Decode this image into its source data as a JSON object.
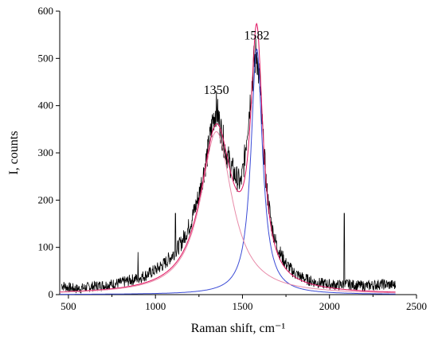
{
  "chart_data": {
    "type": "line",
    "xlabel": "Raman shift, cm⁻¹",
    "ylabel": "I, counts",
    "xlim": [
      450,
      2500
    ],
    "ylim": [
      0,
      600
    ],
    "x_ticks": [
      500,
      1000,
      1500,
      2000,
      2500
    ],
    "y_ticks": [
      0,
      100,
      200,
      300,
      400,
      500,
      600
    ],
    "grid": false,
    "annotations": [
      {
        "text": "1350",
        "x": 1350,
        "y": 425
      },
      {
        "text": "1582",
        "x": 1582,
        "y": 540
      }
    ],
    "series": [
      {
        "style": "measured",
        "color": "#000000",
        "x": [
          460,
          500,
          550,
          600,
          650,
          700,
          750,
          800,
          850,
          900,
          950,
          1000,
          1050,
          1100,
          1150,
          1200,
          1250,
          1300,
          1330,
          1350,
          1370,
          1400,
          1430,
          1460,
          1490,
          1510,
          1530,
          1550,
          1565,
          1582,
          1600,
          1620,
          1640,
          1670,
          1700,
          1750,
          1800,
          1850,
          1900,
          1950,
          2000,
          2050,
          2100,
          2150,
          2200,
          2250,
          2300,
          2380
        ],
        "values": [
          20,
          15,
          12,
          15,
          18,
          20,
          22,
          25,
          30,
          35,
          42,
          52,
          65,
          85,
          110,
          150,
          210,
          300,
          370,
          395,
          360,
          310,
          275,
          250,
          235,
          280,
          360,
          430,
          485,
          515,
          440,
          320,
          220,
          140,
          100,
          65,
          45,
          35,
          28,
          24,
          22,
          20,
          22,
          20,
          18,
          20,
          22,
          20
        ],
        "spikes": [
          {
            "x": 1115,
            "y": 172
          },
          {
            "x": 2085,
            "y": 172
          },
          {
            "x": 900,
            "y": 90
          }
        ]
      },
      {
        "style": "fit-envelope",
        "color": "#e0115f",
        "peaks": [
          {
            "center": 1350,
            "amplitude": 345,
            "hwhm": 110
          },
          {
            "center": 1582,
            "amplitude": 510,
            "hwhm": 42
          }
        ]
      },
      {
        "style": "fit-component",
        "color": "#3b4bd6",
        "peaks": [
          {
            "center": 1582,
            "amplitude": 520,
            "hwhm": 40
          }
        ]
      },
      {
        "style": "fit-component",
        "color": "#e88aa8",
        "peaks": [
          {
            "center": 1350,
            "amplitude": 345,
            "hwhm": 110
          }
        ]
      }
    ]
  }
}
